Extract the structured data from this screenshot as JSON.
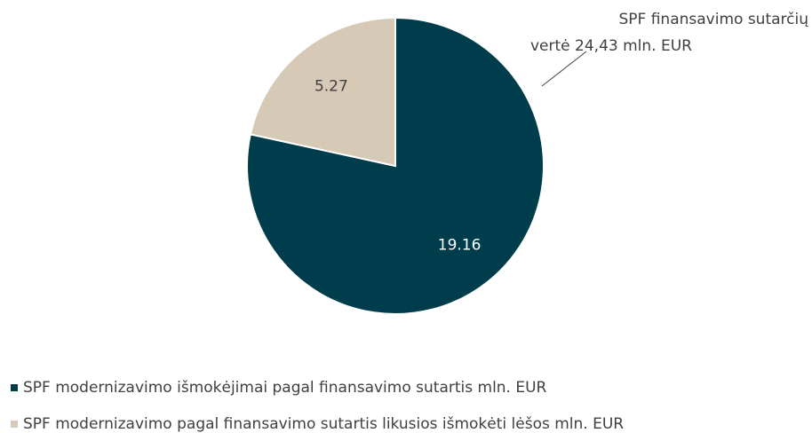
{
  "chart_data": {
    "type": "pie",
    "annotation": [
      "SPF finansavimo  sutarčių",
      "vertė 24,43 mln. EUR"
    ],
    "categories": [
      "SPF modernizavimo išmokėjimai pagal finansavimo sutartis mln. EUR",
      "SPF modernizavimo   pagal finansavimo sutartis likusios išmokėti lėšos mln. EUR"
    ],
    "values": [
      19.16,
      5.27
    ],
    "colors": [
      "#003d4c",
      "#d6c9b6"
    ],
    "label_colors": [
      "#ffffff",
      "#404040"
    ],
    "legend": "bottom-left"
  }
}
